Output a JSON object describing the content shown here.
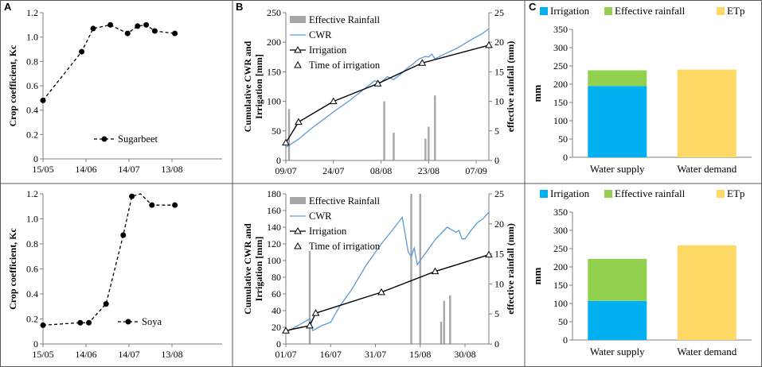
{
  "panel_labels": [
    "A",
    "B",
    "C"
  ],
  "chart_data": [
    {
      "id": "A_top",
      "type": "line",
      "ylabel": "Crop coefficient, Kc",
      "xlabel": "",
      "x_tick_labels": [
        "15/05",
        "14/06",
        "14/07",
        "13/08"
      ],
      "y_ticks": [
        "0",
        "0.2",
        "0.4",
        "0.6",
        "0.8",
        "1.0",
        "1.2"
      ],
      "ylim": [
        0,
        1.2
      ],
      "xlim_days": [
        0,
        125
      ],
      "x_tick_days": [
        0,
        30,
        60,
        90
      ],
      "series": [
        {
          "name": "Sugarbeet",
          "x_days": [
            0,
            27,
            35,
            47,
            59,
            66,
            72,
            78,
            92
          ],
          "values": [
            0.48,
            0.88,
            1.07,
            1.1,
            1.03,
            1.09,
            1.1,
            1.05,
            1.03
          ]
        }
      ],
      "legend": "Sugarbeet"
    },
    {
      "id": "A_bottom",
      "type": "line",
      "ylabel": "Crop coefficient, Kc",
      "xlabel": "",
      "x_tick_labels": [
        "15/05",
        "14/06",
        "14/07",
        "13/08"
      ],
      "y_ticks": [
        "0",
        "0.2",
        "0.4",
        "0.6",
        "0.8",
        "1.0",
        "1.2"
      ],
      "ylim": [
        0,
        1.2
      ],
      "xlim_days": [
        0,
        125
      ],
      "x_tick_days": [
        0,
        30,
        60,
        90
      ],
      "series": [
        {
          "name": "Soya",
          "x_days": [
            0,
            26,
            32,
            44,
            56,
            62,
            68,
            76,
            82,
            92
          ],
          "markers": [
            true,
            true,
            true,
            true,
            true,
            true,
            false,
            true,
            false,
            true
          ],
          "values": [
            0.15,
            0.17,
            0.17,
            0.32,
            0.87,
            1.18,
            1.2,
            1.11,
            1.11,
            1.11
          ]
        }
      ],
      "legend": "Soya"
    },
    {
      "id": "B_top",
      "type": "line+bar",
      "ylabel": "Cumulative CWR and Irrigation [mm]",
      "y2label": "effective rainfall (mm)",
      "x_tick_labels": [
        "09/07",
        "24/07",
        "08/08",
        "23/08",
        "07/09"
      ],
      "x_tick_days": [
        0,
        15,
        30,
        45,
        60
      ],
      "xlim_days": [
        0,
        64
      ],
      "y_ticks": [
        "0",
        "50",
        "100",
        "150",
        "200",
        "250"
      ],
      "ylim": [
        0,
        250
      ],
      "y2_ticks": [
        "0",
        "5",
        "10",
        "15",
        "20",
        "25"
      ],
      "y2lim": [
        0,
        25
      ],
      "legend": [
        "Effective Rainfall",
        "CWR",
        "Irrigation",
        "Time of irrigation"
      ],
      "rainfall": {
        "x_days": [
          1,
          31,
          34,
          44,
          45,
          47
        ],
        "values": [
          8.7,
          10,
          4.7,
          3.7,
          5.7,
          11
        ]
      },
      "cwr": {
        "x_days": [
          0,
          4,
          8,
          12,
          16,
          20,
          24,
          28,
          30,
          32,
          34,
          36,
          38,
          40,
          42,
          44,
          45,
          46,
          47,
          50,
          54,
          58,
          62,
          64
        ],
        "values": [
          22,
          36,
          54,
          70,
          86,
          101,
          118,
          135,
          132,
          142,
          137,
          145,
          155,
          163,
          172,
          176,
          175,
          180,
          172,
          180,
          190,
          203,
          215,
          223
        ]
      },
      "irrigation": {
        "x_days": [
          0,
          4,
          15,
          29,
          43,
          64
        ],
        "values": [
          30,
          65,
          100,
          130,
          165,
          195
        ]
      },
      "time_of_irrigation": {
        "x_days": [
          0,
          4,
          15,
          29,
          43,
          64
        ],
        "values": [
          30,
          65,
          100,
          130,
          165,
          195
        ]
      }
    },
    {
      "id": "B_bottom",
      "type": "line+bar",
      "ylabel": "Cumulative CWR and Irrigation [mm]",
      "y2label": "effective rainfall (mm)",
      "x_tick_labels": [
        "01/07",
        "16/07",
        "31/07",
        "15/08",
        "30/08"
      ],
      "x_tick_days": [
        0,
        15,
        30,
        45,
        60
      ],
      "xlim_days": [
        0,
        68
      ],
      "y_ticks": [
        "0",
        "20",
        "40",
        "60",
        "80",
        "100",
        "120",
        "140",
        "160",
        "180"
      ],
      "ylim": [
        0,
        180
      ],
      "y2_ticks": [
        "0",
        "5",
        "10",
        "15",
        "20",
        "25"
      ],
      "y2lim": [
        0,
        25
      ],
      "legend": [
        "Effective Rainfall",
        "CWR",
        "Irrigation",
        "Time of irrigation"
      ],
      "rainfall": {
        "x_days": [
          8,
          42,
          45,
          52,
          53,
          55
        ],
        "values": [
          15.5,
          25,
          25,
          3.7,
          7.2,
          8.1
        ]
      },
      "cwr": {
        "x_days": [
          0,
          4,
          7,
          8,
          9,
          12,
          15,
          18,
          22,
          27,
          32,
          36,
          39,
          41,
          42,
          43,
          44,
          46,
          50,
          54,
          57,
          58,
          59,
          60,
          62,
          64,
          66,
          68
        ],
        "values": [
          14,
          22,
          28,
          30,
          16,
          22,
          26,
          45,
          65,
          95,
          120,
          138,
          152,
          110,
          105,
          115,
          95,
          105,
          125,
          140,
          134,
          136,
          126,
          126,
          136,
          145,
          150,
          158
        ]
      },
      "irrigation": {
        "x_days": [
          0,
          8,
          10,
          32,
          50,
          68
        ],
        "values": [
          16,
          22,
          37,
          62,
          87,
          107
        ]
      },
      "time_of_irrigation": {
        "x_days": [
          0,
          8,
          10,
          32,
          50,
          68
        ],
        "values": [
          16,
          22,
          37,
          62,
          87,
          107
        ]
      }
    },
    {
      "id": "C_top",
      "type": "bar",
      "stacked": true,
      "ylabel": "mm",
      "categories": [
        "Water supply",
        "Water  demand"
      ],
      "y_ticks": [
        "0",
        "50",
        "100",
        "150",
        "200",
        "250",
        "300",
        "350"
      ],
      "ylim": [
        0,
        350
      ],
      "legend": [
        "Irrigation",
        "Effective rainfall",
        "ETp"
      ],
      "series": [
        {
          "name": "Irrigation",
          "values": [
            195,
            0
          ]
        },
        {
          "name": "Effective rainfall",
          "values": [
            43,
            0
          ]
        },
        {
          "name": "ETp",
          "values": [
            0,
            240
          ]
        }
      ]
    },
    {
      "id": "C_bottom",
      "type": "bar",
      "stacked": true,
      "ylabel": "mm",
      "categories": [
        "Water supply",
        "Water  demand"
      ],
      "y_ticks": [
        "0",
        "50",
        "100",
        "150",
        "200",
        "250",
        "300",
        "350"
      ],
      "ylim": [
        0,
        350
      ],
      "legend": [
        "Irrigation",
        "Effective rainfall",
        "ETp"
      ],
      "series": [
        {
          "name": "Irrigation",
          "values": [
            107,
            0
          ]
        },
        {
          "name": "Effective rainfall",
          "values": [
            115,
            0
          ]
        },
        {
          "name": "ETp",
          "values": [
            0,
            259
          ]
        }
      ]
    }
  ],
  "colors": {
    "irrigation": "#00b0f0",
    "effective_rainfall": "#92d050",
    "etp": "#ffd966",
    "cwr": "#5b9bd5",
    "rainfall_bar": "#a6a6a6",
    "axis": "#7f7f7f",
    "frame": "#595959"
  }
}
